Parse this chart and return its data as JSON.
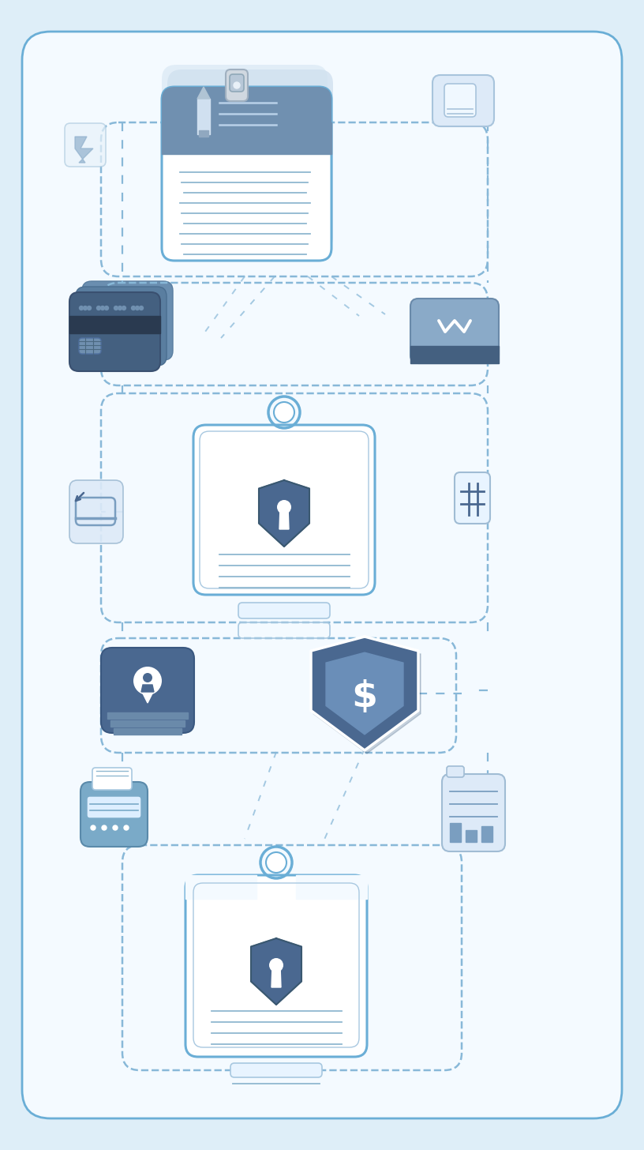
{
  "bg_outer": "#deeef8",
  "bg_inner": "#f4faff",
  "card_border": "#6aaed6",
  "dashed_color": "#88b8d8",
  "dark_blue": "#4a6890",
  "mid_blue": "#7a9ec0",
  "light_blue": "#a8c8e0",
  "lighter_blue": "#cce0f0",
  "very_light": "#e8f4ff",
  "white": "#ffffff",
  "line_color": "#90b8d0",
  "figsize": [
    8.16,
    14.56
  ],
  "dpi": 100
}
